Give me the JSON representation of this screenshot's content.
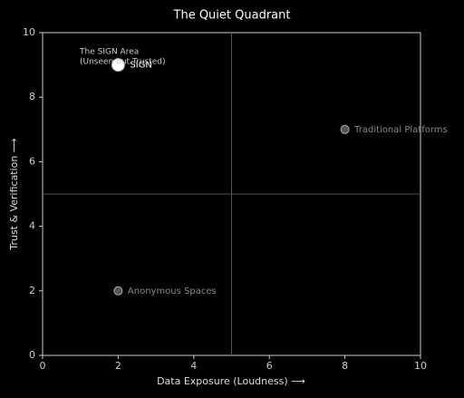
{
  "chart_data": {
    "type": "scatter",
    "title": "The Quiet Quadrant",
    "xlabel": "Data Exposure (Loudness) ⟶",
    "ylabel": "Trust & Verification ⟶",
    "x": [
      2,
      8,
      2
    ],
    "y": [
      9,
      7,
      2
    ],
    "labels": [
      "SIGN",
      "Traditional Platforms",
      "Anonymous Spaces"
    ],
    "colors": [
      "#ffffff",
      "#555555",
      "#555555"
    ],
    "label_colors": [
      "#ffffff",
      "#888888",
      "#888888"
    ],
    "sizes": [
      14,
      9,
      9
    ],
    "annotation": [
      "The SIGN Area",
      "(Unseen but Trusted)"
    ],
    "xlim": [
      0,
      10
    ],
    "ylim": [
      0,
      10
    ],
    "xticks": [
      0,
      2,
      4,
      6,
      8,
      10
    ],
    "yticks": [
      0,
      2,
      4,
      6,
      8,
      10
    ],
    "xdivider": 5,
    "ydivider": 5
  }
}
